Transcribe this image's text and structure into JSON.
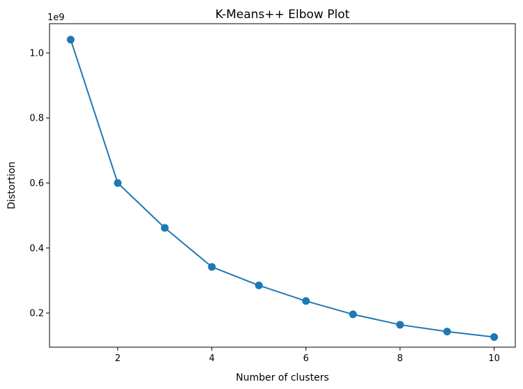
{
  "chart_data": {
    "type": "line",
    "title": "K-Means++ Elbow Plot",
    "xlabel": "Number of clusters",
    "ylabel": "Distortion",
    "y_offset_label": "1e9",
    "xlim": [
      0.55,
      10.45
    ],
    "ylim": [
      0.095,
      1.09
    ],
    "x_ticks": [
      2,
      4,
      6,
      8,
      10
    ],
    "y_ticks": [
      0.2,
      0.4,
      0.6,
      0.8,
      1.0
    ],
    "y_tick_labels": [
      "0.2",
      "0.4",
      "0.6",
      "0.8",
      "1.0"
    ],
    "grid": false,
    "series": [
      {
        "color": "#1f77b4",
        "marker": "circle",
        "x": [
          1,
          2,
          3,
          4,
          5,
          6,
          7,
          8,
          9,
          10
        ],
        "y": [
          1.041,
          0.6,
          0.462,
          0.342,
          0.285,
          0.237,
          0.196,
          0.164,
          0.143,
          0.126
        ]
      }
    ]
  }
}
